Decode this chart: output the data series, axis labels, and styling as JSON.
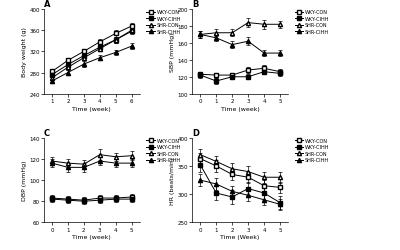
{
  "panel_A": {
    "title": "A",
    "xlabel": "Time (week)",
    "ylabel": "Body weight (g)",
    "xlim": [
      0.5,
      6.5
    ],
    "ylim": [
      240,
      400
    ],
    "yticks": [
      240,
      280,
      320,
      360,
      400
    ],
    "xticks": [
      1,
      2,
      3,
      4,
      5,
      6
    ],
    "series": {
      "WKY-CON": {
        "x": [
          1,
          2,
          3,
          4,
          5,
          6
        ],
        "y": [
          282,
          303,
          320,
          338,
          354,
          368
        ],
        "err": [
          4,
          5,
          5,
          5,
          6,
          6
        ]
      },
      "WKY-CIHH": {
        "x": [
          1,
          2,
          3,
          4,
          5,
          6
        ],
        "y": [
          276,
          295,
          312,
          328,
          342,
          358
        ],
        "err": [
          4,
          5,
          5,
          5,
          6,
          6
        ]
      },
      "SHR-CON": {
        "x": [
          1,
          2,
          3,
          4,
          5,
          6
        ],
        "y": [
          270,
          290,
          308,
          325,
          342,
          360
        ],
        "err": [
          4,
          5,
          5,
          5,
          6,
          6
        ]
      },
      "SHR-CIHH": {
        "x": [
          1,
          2,
          3,
          4,
          5,
          6
        ],
        "y": [
          264,
          280,
          296,
          308,
          318,
          330
        ],
        "err": [
          4,
          5,
          5,
          5,
          5,
          6
        ]
      }
    }
  },
  "panel_B": {
    "title": "B",
    "xlabel": "Time (week)",
    "ylabel": "SBP (mmHg)",
    "xlim": [
      -0.5,
      5.5
    ],
    "ylim": [
      100,
      200
    ],
    "yticks": [
      100,
      120,
      140,
      160,
      180,
      200
    ],
    "xticks": [
      0,
      1,
      2,
      3,
      4,
      5
    ],
    "series": {
      "WKY-CON": {
        "x": [
          0,
          1,
          2,
          3,
          4,
          5
        ],
        "y": [
          123,
          122,
          122,
          128,
          130,
          126
        ],
        "err": [
          3,
          3,
          3,
          4,
          4,
          3
        ]
      },
      "WKY-CIHH": {
        "x": [
          0,
          1,
          2,
          3,
          4,
          5
        ],
        "y": [
          122,
          115,
          120,
          120,
          126,
          124
        ],
        "err": [
          3,
          3,
          3,
          3,
          3,
          3
        ]
      },
      "SHR-CON": {
        "x": [
          0,
          1,
          2,
          3,
          4,
          5
        ],
        "y": [
          170,
          172,
          172,
          184,
          182,
          182
        ],
        "err": [
          4,
          4,
          4,
          5,
          5,
          4
        ]
      },
      "SHR-CIHH": {
        "x": [
          0,
          1,
          2,
          3,
          4,
          5
        ],
        "y": [
          170,
          166,
          158,
          162,
          148,
          148
        ],
        "err": [
          4,
          4,
          4,
          5,
          4,
          4
        ]
      }
    }
  },
  "panel_C": {
    "title": "C",
    "xlabel": "Time (week)",
    "ylabel": "DBP (mmHg)",
    "xlim": [
      -0.5,
      5.5
    ],
    "ylim": [
      60,
      140
    ],
    "yticks": [
      60,
      80,
      100,
      120,
      140
    ],
    "xticks": [
      0,
      1,
      2,
      3,
      4,
      5
    ],
    "series": {
      "WKY-CON": {
        "x": [
          0,
          1,
          2,
          3,
          4,
          5
        ],
        "y": [
          83,
          82,
          81,
          83,
          83,
          84
        ],
        "err": [
          3,
          3,
          3,
          3,
          3,
          3
        ]
      },
      "WKY-CIHH": {
        "x": [
          0,
          1,
          2,
          3,
          4,
          5
        ],
        "y": [
          82,
          81,
          80,
          81,
          82,
          82
        ],
        "err": [
          3,
          3,
          3,
          3,
          3,
          3
        ]
      },
      "SHR-CON": {
        "x": [
          0,
          1,
          2,
          3,
          4,
          5
        ],
        "y": [
          118,
          116,
          115,
          124,
          122,
          123
        ],
        "err": [
          4,
          4,
          4,
          5,
          4,
          4
        ]
      },
      "SHR-CIHH": {
        "x": [
          0,
          1,
          2,
          3,
          4,
          5
        ],
        "y": [
          116,
          112,
          112,
          118,
          116,
          116
        ],
        "err": [
          4,
          4,
          4,
          4,
          4,
          4
        ]
      }
    }
  },
  "panel_D": {
    "title": "D",
    "xlabel": "Time (Week)",
    "ylabel": "HR (beats/min)",
    "xlim": [
      -0.5,
      5.5
    ],
    "ylim": [
      250,
      400
    ],
    "yticks": [
      250,
      300,
      350,
      400
    ],
    "xticks": [
      0,
      1,
      2,
      3,
      4,
      5
    ],
    "series": {
      "WKY-CON": {
        "x": [
          0,
          1,
          2,
          3,
          4,
          5
        ],
        "y": [
          363,
          350,
          335,
          330,
          315,
          312
        ],
        "err": [
          10,
          10,
          10,
          10,
          10,
          10
        ]
      },
      "WKY-CIHH": {
        "x": [
          0,
          1,
          2,
          3,
          4,
          5
        ],
        "y": [
          352,
          302,
          295,
          310,
          302,
          285
        ],
        "err": [
          12,
          12,
          12,
          12,
          12,
          12
        ]
      },
      "SHR-CON": {
        "x": [
          0,
          1,
          2,
          3,
          4,
          5
        ],
        "y": [
          370,
          358,
          345,
          340,
          330,
          330
        ],
        "err": [
          10,
          10,
          10,
          10,
          10,
          10
        ]
      },
      "SHR-CIHH": {
        "x": [
          0,
          1,
          2,
          3,
          4,
          5
        ],
        "y": [
          325,
          318,
          305,
          298,
          290,
          282
        ],
        "err": [
          10,
          10,
          10,
          10,
          10,
          10
        ]
      }
    }
  },
  "fill_colors": {
    "WKY-CON": "white",
    "WKY-CIHH": "black",
    "SHR-CON": "white",
    "SHR-CIHH": "black"
  },
  "marker_shapes": {
    "WKY-CON": "s",
    "WKY-CIHH": "s",
    "SHR-CON": "^",
    "SHR-CIHH": "^"
  },
  "series_names": [
    "WKY-CON",
    "WKY-CIHH",
    "SHR-CON",
    "SHR-CIHH"
  ]
}
